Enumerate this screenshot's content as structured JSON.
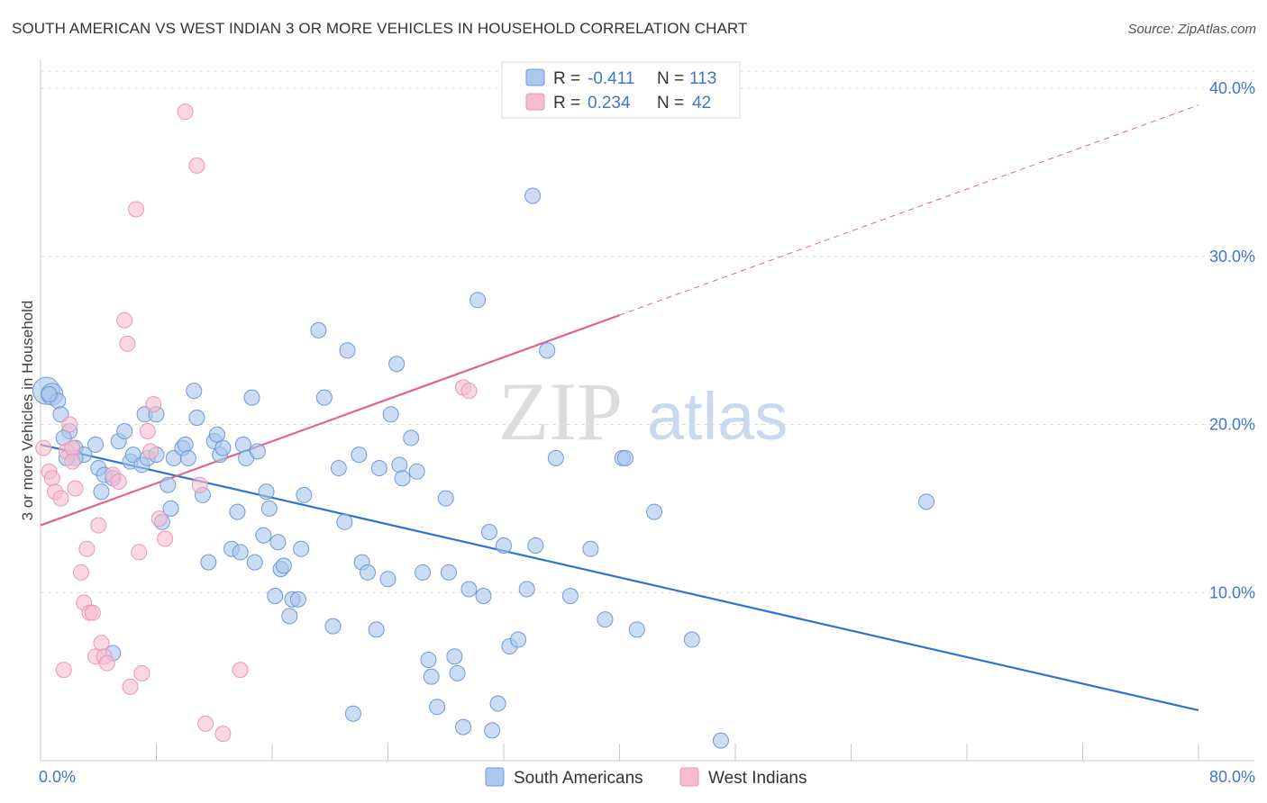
{
  "title": "SOUTH AMERICAN VS WEST INDIAN 3 OR MORE VEHICLES IN HOUSEHOLD CORRELATION CHART",
  "source": "Source: ZipAtlas.com",
  "watermark": {
    "zip": "ZIP",
    "atlas": "atlas"
  },
  "legend": {
    "rows": [
      {
        "r_label": "R =",
        "r_value": "-0.411",
        "n_label": "N =",
        "n_value": "113",
        "color": "#a9c7ef"
      },
      {
        "r_label": "R =",
        "r_value": "0.234",
        "n_label": "N =",
        "n_value": "42",
        "color": "#f7bcd0"
      }
    ]
  },
  "bottom_legend": [
    {
      "label": "South Americans",
      "color": "#a9c7ef"
    },
    {
      "label": "West Indians",
      "color": "#f7bcd0"
    }
  ],
  "chart_data": {
    "type": "scatter",
    "ylabel": "3 or more Vehicles in Household",
    "xlabel": "",
    "xlim": [
      0,
      80
    ],
    "ylim": [
      0,
      40
    ],
    "x_tick_labels": [
      "0.0%",
      "80.0%"
    ],
    "y_ticks": [
      10,
      20,
      30,
      40
    ],
    "y_tick_labels": [
      "10.0%",
      "20.0%",
      "30.0%",
      "40.0%"
    ],
    "grid": true,
    "series": [
      {
        "name": "South Americans",
        "color": "#a9c7ef",
        "stroke": "#6f9ad6",
        "trend": {
          "x0": 0,
          "y0": 18.8,
          "x1": 80,
          "y1": 3.0,
          "color": "#2f74d0",
          "dashed_from": null
        },
        "points": [
          [
            0.4,
            22.0
          ],
          [
            0.8,
            21.8
          ],
          [
            1.2,
            21.4
          ],
          [
            1.4,
            20.6
          ],
          [
            2.0,
            19.6
          ],
          [
            1.6,
            19.2
          ],
          [
            2.4,
            18.6
          ],
          [
            3.0,
            18.2
          ],
          [
            2.4,
            18.0
          ],
          [
            3.8,
            18.8
          ],
          [
            4.0,
            17.4
          ],
          [
            4.4,
            17.0
          ],
          [
            5.0,
            16.8
          ],
          [
            5.4,
            19.0
          ],
          [
            5.8,
            19.6
          ],
          [
            6.2,
            17.8
          ],
          [
            6.4,
            18.2
          ],
          [
            7.0,
            17.6
          ],
          [
            7.4,
            18.0
          ],
          [
            8.0,
            18.2
          ],
          [
            7.2,
            20.6
          ],
          [
            8.0,
            20.6
          ],
          [
            8.4,
            14.2
          ],
          [
            8.8,
            16.4
          ],
          [
            9.0,
            15.0
          ],
          [
            9.2,
            18.0
          ],
          [
            9.8,
            18.6
          ],
          [
            10.0,
            18.8
          ],
          [
            10.2,
            18.0
          ],
          [
            10.6,
            22.0
          ],
          [
            10.8,
            20.4
          ],
          [
            11.2,
            15.8
          ],
          [
            11.6,
            11.8
          ],
          [
            12.0,
            19.0
          ],
          [
            12.2,
            19.4
          ],
          [
            12.4,
            18.2
          ],
          [
            12.6,
            18.6
          ],
          [
            13.2,
            12.6
          ],
          [
            13.6,
            14.8
          ],
          [
            13.8,
            12.4
          ],
          [
            14.0,
            18.8
          ],
          [
            14.2,
            18.0
          ],
          [
            14.6,
            21.6
          ],
          [
            14.8,
            11.8
          ],
          [
            15.0,
            18.4
          ],
          [
            15.4,
            13.4
          ],
          [
            15.6,
            16.0
          ],
          [
            15.8,
            15.0
          ],
          [
            16.2,
            9.8
          ],
          [
            16.4,
            13.0
          ],
          [
            16.6,
            11.4
          ],
          [
            16.8,
            11.6
          ],
          [
            17.2,
            8.6
          ],
          [
            17.4,
            9.6
          ],
          [
            17.8,
            9.6
          ],
          [
            18.0,
            12.6
          ],
          [
            18.2,
            15.8
          ],
          [
            19.2,
            25.6
          ],
          [
            19.6,
            21.6
          ],
          [
            20.2,
            8.0
          ],
          [
            20.6,
            17.4
          ],
          [
            21.0,
            14.2
          ],
          [
            21.2,
            24.4
          ],
          [
            21.6,
            2.8
          ],
          [
            22.0,
            18.2
          ],
          [
            22.2,
            11.8
          ],
          [
            22.6,
            11.2
          ],
          [
            23.2,
            7.8
          ],
          [
            23.4,
            17.4
          ],
          [
            24.0,
            10.8
          ],
          [
            24.2,
            20.6
          ],
          [
            24.6,
            23.6
          ],
          [
            24.8,
            17.6
          ],
          [
            25.0,
            16.8
          ],
          [
            25.6,
            19.2
          ],
          [
            26.0,
            17.2
          ],
          [
            26.4,
            11.2
          ],
          [
            26.8,
            6.0
          ],
          [
            27.0,
            5.0
          ],
          [
            27.4,
            3.2
          ],
          [
            28.0,
            15.6
          ],
          [
            28.2,
            11.2
          ],
          [
            28.6,
            6.2
          ],
          [
            28.8,
            5.2
          ],
          [
            29.2,
            2.0
          ],
          [
            29.6,
            10.2
          ],
          [
            30.2,
            27.4
          ],
          [
            30.6,
            9.8
          ],
          [
            31.0,
            13.6
          ],
          [
            31.2,
            1.8
          ],
          [
            31.6,
            3.4
          ],
          [
            32.0,
            12.8
          ],
          [
            32.4,
            6.8
          ],
          [
            33.0,
            7.2
          ],
          [
            33.6,
            10.2
          ],
          [
            34.0,
            33.6
          ],
          [
            34.2,
            12.8
          ],
          [
            35.0,
            24.4
          ],
          [
            35.6,
            18.0
          ],
          [
            36.6,
            9.8
          ],
          [
            38.0,
            12.6
          ],
          [
            39.0,
            8.4
          ],
          [
            40.2,
            18.0
          ],
          [
            40.4,
            18.0
          ],
          [
            41.2,
            7.8
          ],
          [
            42.4,
            14.8
          ],
          [
            45.0,
            7.2
          ],
          [
            47.0,
            1.2
          ],
          [
            61.2,
            15.4
          ],
          [
            0.6,
            21.8
          ],
          [
            1.8,
            18.0
          ],
          [
            4.2,
            16.0
          ],
          [
            5.0,
            6.4
          ]
        ]
      },
      {
        "name": "West Indians",
        "color": "#f7bcd0",
        "stroke": "#e899b3",
        "trend": {
          "x0": 0,
          "y0": 14.0,
          "x1": 80,
          "y1": 39.0,
          "color": "#e0628e",
          "dashed_from": 40.0
        },
        "points": [
          [
            0.2,
            18.6
          ],
          [
            0.6,
            17.2
          ],
          [
            0.8,
            16.8
          ],
          [
            1.0,
            16.0
          ],
          [
            1.4,
            15.6
          ],
          [
            1.8,
            18.4
          ],
          [
            2.0,
            20.0
          ],
          [
            2.2,
            18.6
          ],
          [
            2.4,
            16.2
          ],
          [
            2.8,
            11.2
          ],
          [
            3.0,
            9.4
          ],
          [
            3.2,
            12.6
          ],
          [
            3.4,
            8.8
          ],
          [
            3.6,
            8.8
          ],
          [
            3.8,
            6.2
          ],
          [
            4.0,
            14.0
          ],
          [
            4.2,
            7.0
          ],
          [
            4.4,
            6.2
          ],
          [
            4.6,
            5.8
          ],
          [
            5.0,
            17.0
          ],
          [
            5.4,
            16.6
          ],
          [
            5.8,
            26.2
          ],
          [
            6.0,
            24.8
          ],
          [
            6.2,
            4.4
          ],
          [
            6.6,
            32.8
          ],
          [
            6.8,
            12.4
          ],
          [
            7.0,
            5.2
          ],
          [
            7.4,
            19.6
          ],
          [
            7.6,
            18.4
          ],
          [
            7.8,
            21.2
          ],
          [
            8.2,
            14.4
          ],
          [
            8.6,
            13.2
          ],
          [
            10.0,
            38.6
          ],
          [
            10.8,
            35.4
          ],
          [
            11.0,
            16.4
          ],
          [
            11.4,
            2.2
          ],
          [
            12.6,
            1.6
          ],
          [
            13.8,
            5.4
          ],
          [
            29.2,
            22.2
          ],
          [
            29.6,
            22.0
          ],
          [
            1.6,
            5.4
          ],
          [
            2.2,
            17.8
          ]
        ]
      }
    ]
  }
}
